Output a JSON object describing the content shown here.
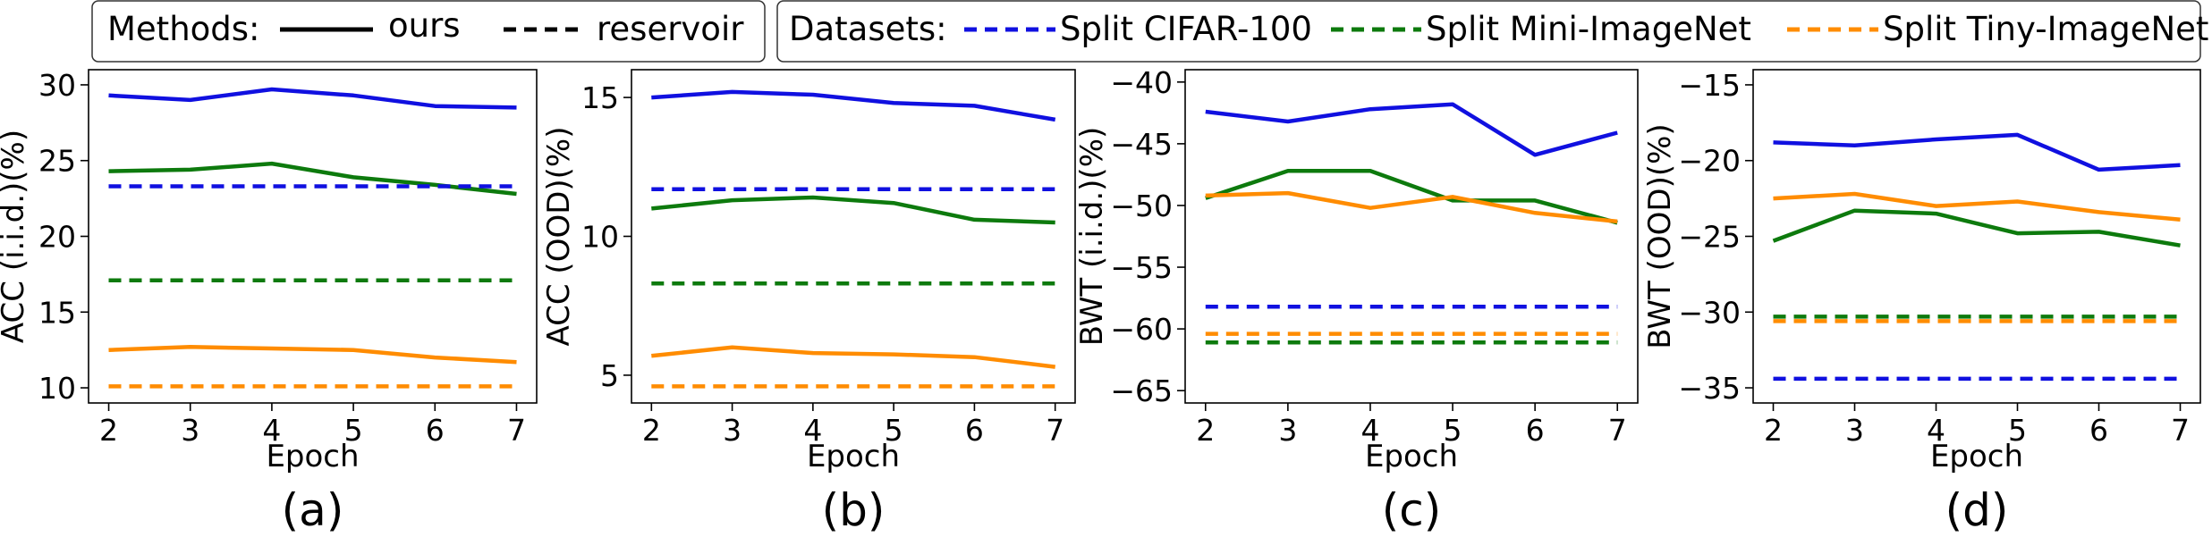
{
  "legend": {
    "methods_title": "Methods:",
    "methods": [
      {
        "name": "ours",
        "style": "solid"
      },
      {
        "name": "reservoir",
        "style": "dashed"
      }
    ],
    "datasets_title": "Datasets:",
    "datasets": [
      {
        "name": "Split CIFAR-100",
        "color": "#1010e0"
      },
      {
        "name": "Split Mini-ImageNet",
        "color": "#0d7a0d"
      },
      {
        "name": "Split Tiny-ImageNet",
        "color": "#ff8c00"
      }
    ]
  },
  "chart_data": [
    {
      "type": "line",
      "panel_label": "(a)",
      "xlabel": "Epoch",
      "ylabel": "ACC (i.i.d.)(%)",
      "x": [
        2,
        3,
        4,
        5,
        6,
        7
      ],
      "xticks": [
        "2",
        "3",
        "4",
        "5",
        "6",
        "7"
      ],
      "ylim": [
        9,
        31
      ],
      "yticks": [
        10,
        15,
        20,
        25,
        30
      ],
      "ytick_labels": [
        "10",
        "15",
        "20",
        "25",
        "30"
      ],
      "series": [
        {
          "dataset": "Split CIFAR-100",
          "method": "ours",
          "values": [
            29.3,
            29.0,
            29.7,
            29.3,
            28.6,
            28.5
          ]
        },
        {
          "dataset": "Split Mini-ImageNet",
          "method": "ours",
          "values": [
            24.3,
            24.4,
            24.8,
            23.9,
            23.4,
            22.8
          ]
        },
        {
          "dataset": "Split Tiny-ImageNet",
          "method": "ours",
          "values": [
            12.5,
            12.7,
            12.6,
            12.5,
            12.0,
            11.7
          ]
        },
        {
          "dataset": "Split CIFAR-100",
          "method": "reservoir",
          "values": [
            23.3,
            23.3,
            23.3,
            23.3,
            23.3,
            23.3
          ]
        },
        {
          "dataset": "Split Mini-ImageNet",
          "method": "reservoir",
          "values": [
            17.1,
            17.1,
            17.1,
            17.1,
            17.1,
            17.1
          ]
        },
        {
          "dataset": "Split Tiny-ImageNet",
          "method": "reservoir",
          "values": [
            10.1,
            10.1,
            10.1,
            10.1,
            10.1,
            10.1
          ]
        }
      ]
    },
    {
      "type": "line",
      "panel_label": "(b)",
      "xlabel": "Epoch",
      "ylabel": "ACC (OOD)(%)",
      "x": [
        2,
        3,
        4,
        5,
        6,
        7
      ],
      "xticks": [
        "2",
        "3",
        "4",
        "5",
        "6",
        "7"
      ],
      "ylim": [
        4,
        16
      ],
      "yticks": [
        5,
        10,
        15
      ],
      "ytick_labels": [
        "5",
        "10",
        "15"
      ],
      "series": [
        {
          "dataset": "Split CIFAR-100",
          "method": "ours",
          "values": [
            15.0,
            15.2,
            15.1,
            14.8,
            14.7,
            14.2
          ]
        },
        {
          "dataset": "Split Mini-ImageNet",
          "method": "ours",
          "values": [
            11.0,
            11.3,
            11.4,
            11.2,
            10.6,
            10.5
          ]
        },
        {
          "dataset": "Split Tiny-ImageNet",
          "method": "ours",
          "values": [
            5.7,
            6.0,
            5.8,
            5.75,
            5.65,
            5.3
          ]
        },
        {
          "dataset": "Split CIFAR-100",
          "method": "reservoir",
          "values": [
            11.7,
            11.7,
            11.7,
            11.7,
            11.7,
            11.7
          ]
        },
        {
          "dataset": "Split Mini-ImageNet",
          "method": "reservoir",
          "values": [
            8.3,
            8.3,
            8.3,
            8.3,
            8.3,
            8.3
          ]
        },
        {
          "dataset": "Split Tiny-ImageNet",
          "method": "reservoir",
          "values": [
            4.6,
            4.6,
            4.6,
            4.6,
            4.6,
            4.6
          ]
        }
      ]
    },
    {
      "type": "line",
      "panel_label": "(c)",
      "xlabel": "Epoch",
      "ylabel": "BWT (i.i.d.)(%)",
      "x": [
        2,
        3,
        4,
        5,
        6,
        7
      ],
      "xticks": [
        "2",
        "3",
        "4",
        "5",
        "6",
        "7"
      ],
      "ylim": [
        -66,
        -39
      ],
      "yticks": [
        -65,
        -60,
        -55,
        -50,
        -45,
        -40
      ],
      "ytick_labels": [
        "−65",
        "−60",
        "−55",
        "−50",
        "−45",
        "−40"
      ],
      "series": [
        {
          "dataset": "Split CIFAR-100",
          "method": "ours",
          "values": [
            -42.4,
            -43.2,
            -42.2,
            -41.8,
            -45.9,
            -44.1
          ]
        },
        {
          "dataset": "Split Mini-ImageNet",
          "method": "ours",
          "values": [
            -49.4,
            -47.2,
            -47.2,
            -49.6,
            -49.6,
            -51.4
          ]
        },
        {
          "dataset": "Split Tiny-ImageNet",
          "method": "ours",
          "values": [
            -49.2,
            -49.0,
            -50.2,
            -49.3,
            -50.6,
            -51.3
          ]
        },
        {
          "dataset": "Split CIFAR-100",
          "method": "reservoir",
          "values": [
            -58.2,
            -58.2,
            -58.2,
            -58.2,
            -58.2,
            -58.2
          ]
        },
        {
          "dataset": "Split Mini-ImageNet",
          "method": "reservoir",
          "values": [
            -61.1,
            -61.1,
            -61.1,
            -61.1,
            -61.1,
            -61.1
          ]
        },
        {
          "dataset": "Split Tiny-ImageNet",
          "method": "reservoir",
          "values": [
            -60.4,
            -60.4,
            -60.4,
            -60.4,
            -60.4,
            -60.4
          ]
        }
      ]
    },
    {
      "type": "line",
      "panel_label": "(d)",
      "xlabel": "Epoch",
      "ylabel": "BWT (OOD)(%)",
      "x": [
        2,
        3,
        4,
        5,
        6,
        7
      ],
      "xticks": [
        "2",
        "3",
        "4",
        "5",
        "6",
        "7"
      ],
      "ylim": [
        -36,
        -14
      ],
      "yticks": [
        -35,
        -30,
        -25,
        -20,
        -15
      ],
      "ytick_labels": [
        "−35",
        "−30",
        "−25",
        "−20",
        "−15"
      ],
      "series": [
        {
          "dataset": "Split CIFAR-100",
          "method": "ours",
          "values": [
            -18.8,
            -19.0,
            -18.6,
            -18.3,
            -20.6,
            -20.3
          ]
        },
        {
          "dataset": "Split Mini-ImageNet",
          "method": "ours",
          "values": [
            -25.3,
            -23.3,
            -23.5,
            -24.8,
            -24.7,
            -25.6
          ]
        },
        {
          "dataset": "Split Tiny-ImageNet",
          "method": "ours",
          "values": [
            -22.5,
            -22.2,
            -23.0,
            -22.7,
            -23.4,
            -23.9
          ]
        },
        {
          "dataset": "Split CIFAR-100",
          "method": "reservoir",
          "values": [
            -34.4,
            -34.4,
            -34.4,
            -34.4,
            -34.4,
            -34.4
          ]
        },
        {
          "dataset": "Split Mini-ImageNet",
          "method": "reservoir",
          "values": [
            -30.3,
            -30.3,
            -30.3,
            -30.3,
            -30.3,
            -30.3
          ]
        },
        {
          "dataset": "Split Tiny-ImageNet",
          "method": "reservoir",
          "values": [
            -30.6,
            -30.6,
            -30.6,
            -30.6,
            -30.6,
            -30.6
          ]
        }
      ]
    }
  ]
}
